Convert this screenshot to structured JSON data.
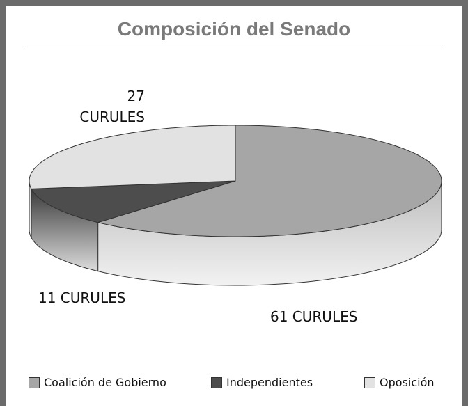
{
  "chart_data": {
    "type": "pie3d",
    "title": "Composición del Senado",
    "categories": [
      "Coalición de Gobierno",
      "Independientes",
      "Oposición"
    ],
    "values": [
      61,
      11,
      27
    ],
    "value_labels": [
      "61 CURULES",
      "11 CURULES",
      "27 CURULES"
    ],
    "colors": [
      "#a6a6a6",
      "#4d4d4d",
      "#e2e2e2"
    ],
    "legend": "bottom"
  }
}
